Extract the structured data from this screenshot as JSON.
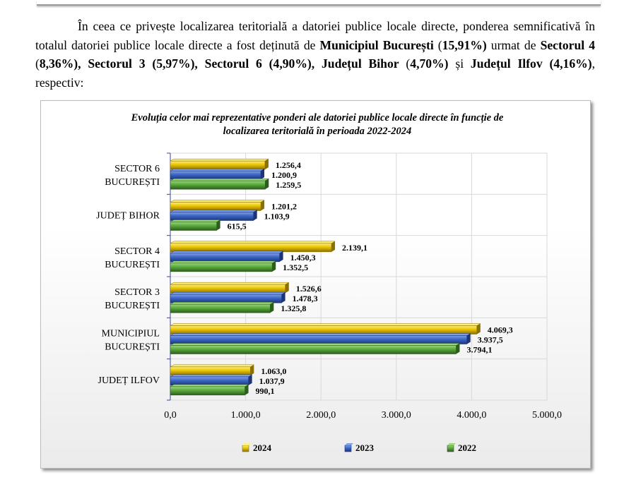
{
  "paragraph": {
    "t1": "În ceea ce privește localizarea teritorială a datoriei publice locale directe, ponderea semnificativă în totalul datoriei publice locale directe a fost deținută de ",
    "b1": "Municipiul București",
    "t2": " (",
    "b2": "15,91%)",
    "t3": " urmat de ",
    "b3": "Sectorul 4",
    "t4": " (",
    "b4": "8,36%), Sectorul 3 (5,97%), Sectorul 6 (4,90%), Județul Bihor",
    "t5": " (",
    "b5": "4,70%)",
    "t6": " și ",
    "b6": "Județul Ilfov (4,16%)",
    "t7": ", respectiv:"
  },
  "chart_data": {
    "type": "bar",
    "orientation": "horizontal",
    "title_line1": "Evoluția celor mai reprezentative ponderi ale datoriei publice locale directe în funcție de",
    "title_line2": "localizarea teritorială în perioada 2022-2024",
    "categories": [
      {
        "line1": "SECTOR 6",
        "line2": "BUCUREȘTI"
      },
      {
        "line1": "JUDEȚ BIHOR",
        "line2": ""
      },
      {
        "line1": "SECTOR 4",
        "line2": "BUCUREȘTI"
      },
      {
        "line1": "SECTOR 3",
        "line2": "BUCUREȘTI"
      },
      {
        "line1": "MUNICIPIUL",
        "line2": "BUCUREȘTI"
      },
      {
        "line1": "JUDEȚ ILFOV",
        "line2": ""
      }
    ],
    "series": [
      {
        "name": "2024",
        "color": "#e8c200",
        "dark": "#8a7000",
        "light": "#fff07a",
        "values": [
          1256.4,
          1201.2,
          2139.1,
          1526.6,
          4069.3,
          1063.0
        ],
        "labels": [
          "1.256,4",
          "1.201,2",
          "2.139,1",
          "1.526,6",
          "4.069,3",
          "1.063,0"
        ]
      },
      {
        "name": "2023",
        "color": "#3a64c4",
        "dark": "#1d3578",
        "light": "#7fa0e8",
        "values": [
          1200.9,
          1103.9,
          1450.3,
          1478.3,
          3937.5,
          1037.9
        ],
        "labels": [
          "1.200,9",
          "1.103,9",
          "1.450,3",
          "1.478,3",
          "3.937,5",
          "1.037,9"
        ]
      },
      {
        "name": "2022",
        "color": "#5aa83c",
        "dark": "#2b5e1c",
        "light": "#9ad67c",
        "values": [
          1259.5,
          615.5,
          1352.5,
          1325.8,
          3794.1,
          990.1
        ],
        "labels": [
          "1.259,5",
          "615,5",
          "1.352,5",
          "1.325,8",
          "3.794,1",
          "990,1"
        ]
      }
    ],
    "xlim": [
      0,
      5000
    ],
    "xticks": [
      0,
      1000,
      2000,
      3000,
      4000,
      5000
    ],
    "xtick_labels": [
      "0,0",
      "1.000,0",
      "2.000,0",
      "3.000,0",
      "4.000,0",
      "5.000,0"
    ],
    "grid": true,
    "legend_position": "bottom",
    "legend": [
      "2024",
      "2023",
      "2022"
    ]
  }
}
